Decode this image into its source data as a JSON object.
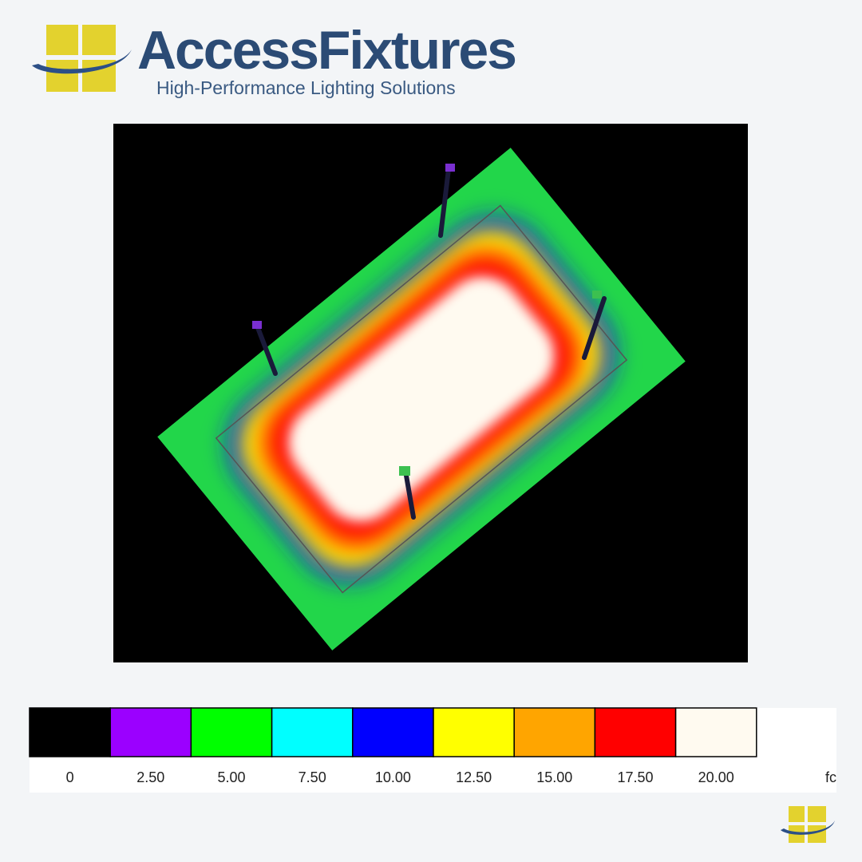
{
  "header": {
    "brand": "AccessFixtures",
    "tagline": "High-Performance Lighting Solutions"
  },
  "legend": {
    "unit": "fc",
    "items": [
      {
        "label": "0",
        "color": "#000000"
      },
      {
        "label": "2.50",
        "color": "#9b00ff"
      },
      {
        "label": "5.00",
        "color": "#00ff00"
      },
      {
        "label": "7.50",
        "color": "#00ffff"
      },
      {
        "label": "10.00",
        "color": "#0000ff"
      },
      {
        "label": "12.50",
        "color": "#ffff00"
      },
      {
        "label": "15.00",
        "color": "#ffa500"
      },
      {
        "label": "17.50",
        "color": "#ff0000"
      },
      {
        "label": "20.00",
        "color": "#fffaf0"
      }
    ]
  }
}
